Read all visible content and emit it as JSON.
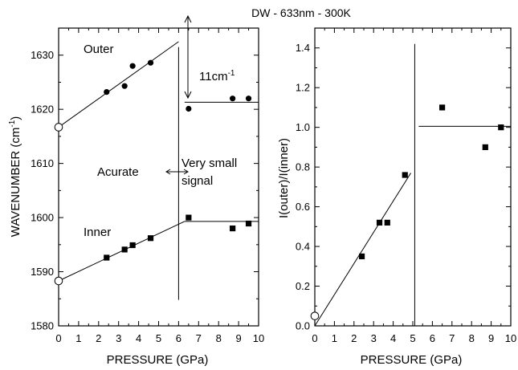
{
  "figure_title": "DW - 633nm - 300K",
  "chart_data": [
    {
      "type": "scatter",
      "xlabel": "PRESSURE (GPa)",
      "ylabel": "WAVENUMBER (cm",
      "ylabel_sup": "-1",
      "ylabel_end": ")",
      "xlim": [
        0,
        10
      ],
      "ylim": [
        1580,
        1635
      ],
      "xticks": [
        "0",
        "1",
        "2",
        "3",
        "4",
        "5",
        "6",
        "7",
        "8",
        "9",
        "10"
      ],
      "yticks": [
        "1580",
        "1590",
        "1600",
        "1610",
        "1620",
        "1630"
      ],
      "grid": false,
      "series": [
        {
          "name": "Outer",
          "points": [
            [
              2.4,
              1623.2
            ],
            [
              3.3,
              1624.3
            ],
            [
              3.7,
              1628.0
            ],
            [
              4.6,
              1628.6
            ],
            [
              6.5,
              1620.1
            ],
            [
              8.7,
              1622.0
            ],
            [
              9.5,
              1622.0
            ]
          ],
          "open_points": [
            [
              0.0,
              1616.7
            ]
          ],
          "fit_lines": [
            [
              [
                0,
                1616.7
              ],
              [
                6.0,
                1632.5
              ]
            ],
            [
              [
                6.3,
                1621.3
              ],
              [
                10,
                1621.3
              ]
            ]
          ]
        },
        {
          "name": "Inner",
          "points": [
            [
              2.4,
              1592.6
            ],
            [
              3.3,
              1594.1
            ],
            [
              3.7,
              1594.9
            ],
            [
              4.6,
              1596.2
            ],
            [
              6.5,
              1600.0
            ],
            [
              8.7,
              1598.0
            ],
            [
              9.5,
              1598.9
            ]
          ],
          "open_points": [
            [
              0.0,
              1588.3
            ]
          ],
          "fit_lines": [
            [
              [
                0,
                1588.3
              ],
              [
                6.3,
                1599.3
              ]
            ],
            [
              [
                6.3,
                1599.3
              ],
              [
                10,
                1599.3
              ]
            ]
          ]
        }
      ],
      "divider_x": 6.0,
      "divider_range": [
        1584.8,
        1631.5
      ],
      "annotations": {
        "shift_label": "11cm",
        "shift_sup": "-1",
        "accurate": "Acurate",
        "very_small": "Very small",
        "signal": "signal"
      }
    },
    {
      "type": "scatter",
      "xlabel": "PRESSURE (GPa)",
      "ylabel": "I(outer)/I(inner)",
      "xlim": [
        0,
        10
      ],
      "ylim": [
        0.0,
        1.5
      ],
      "xticks": [
        "0",
        "1",
        "2",
        "3",
        "4",
        "5",
        "6",
        "7",
        "8",
        "9",
        "10"
      ],
      "yticks": [
        "0.0",
        "0.2",
        "0.4",
        "0.6",
        "0.8",
        "1.0",
        "1.2",
        "1.4"
      ],
      "grid": false,
      "series": [
        {
          "points": [
            [
              2.4,
              0.35
            ],
            [
              3.3,
              0.52
            ],
            [
              3.7,
              0.52
            ],
            [
              4.6,
              0.76
            ],
            [
              6.5,
              1.1
            ],
            [
              8.7,
              0.9
            ],
            [
              9.5,
              1.0
            ]
          ],
          "open_points": [
            [
              0.0,
              0.05
            ]
          ],
          "fit_lines": [
            [
              [
                0.0,
                0.0
              ],
              [
                4.9,
                0.77
              ]
            ],
            [
              [
                5.3,
                1.005
              ],
              [
                10,
                1.005
              ]
            ]
          ]
        }
      ],
      "divider_x": 5.1,
      "divider_range": [
        0.0,
        1.42
      ]
    }
  ]
}
